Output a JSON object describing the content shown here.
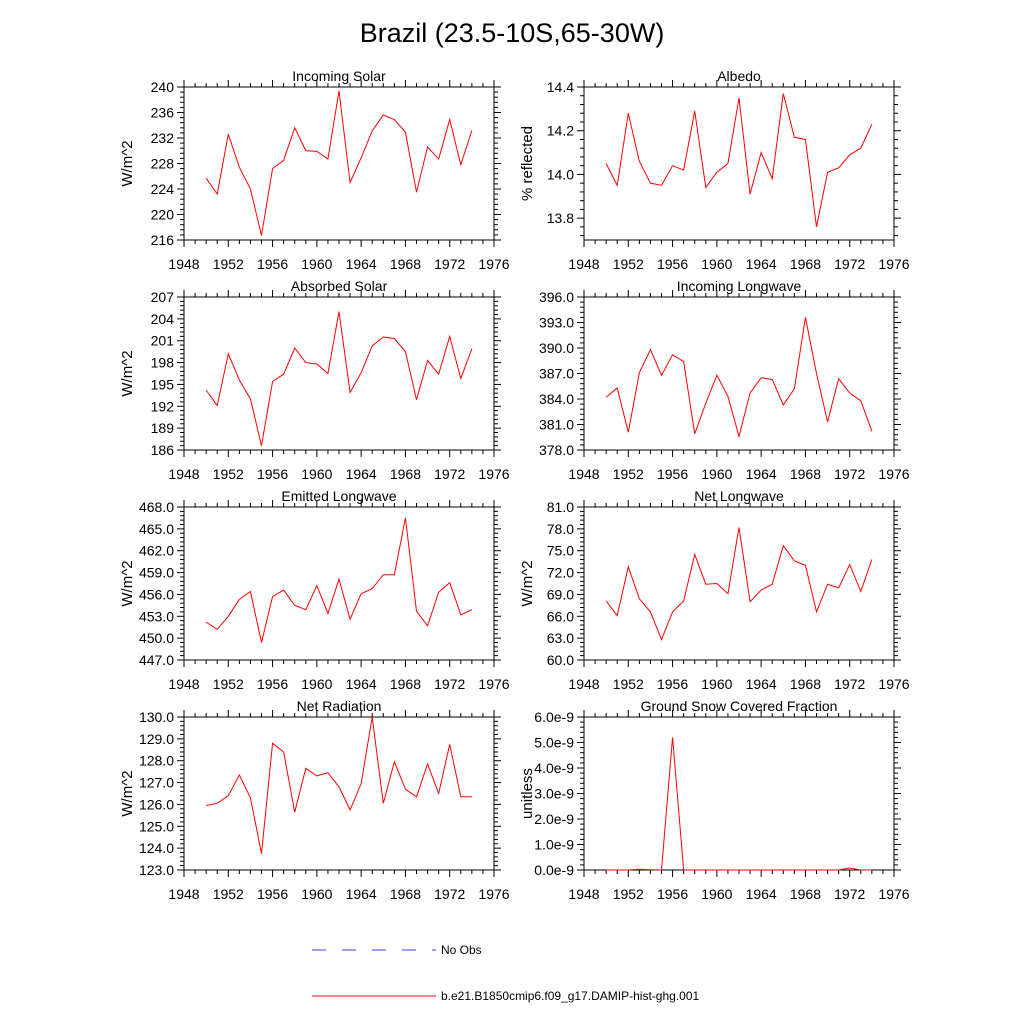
{
  "title": "Brazil (23.5-10S,65-30W)",
  "legend": {
    "items": [
      {
        "label": "No Obs",
        "color": "#3b3bff",
        "dash": "dashed"
      },
      {
        "label": "b.e21.B1850cmip6.f09_g17.DAMIP-hist-ghg.001",
        "color": "#ff0000",
        "dash": "solid"
      }
    ]
  },
  "chart_data": [
    {
      "type": "line",
      "title": "Incoming Solar",
      "ylabel": "W/m^2",
      "xlim": [
        1948,
        1976
      ],
      "ylim": [
        216,
        240
      ],
      "xticks": [
        1948,
        1952,
        1956,
        1960,
        1964,
        1968,
        1972,
        1976
      ],
      "yticks": [
        "216",
        "220",
        "224",
        "228",
        "232",
        "236",
        "240"
      ],
      "ytick_values": [
        216,
        220,
        224,
        228,
        232,
        236,
        240
      ],
      "x": [
        1950,
        1951,
        1952,
        1953,
        1954,
        1955,
        1956,
        1957,
        1958,
        1959,
        1960,
        1961,
        1962,
        1963,
        1964,
        1965,
        1966,
        1967,
        1968,
        1969,
        1970,
        1971,
        1972,
        1973,
        1974
      ],
      "series": [
        {
          "values": [
            225.7,
            223.2,
            232.6,
            227.4,
            224.0,
            216.7,
            227.2,
            228.5,
            233.6,
            230.0,
            229.9,
            228.7,
            239.4,
            225.0,
            228.9,
            233.1,
            235.6,
            234.9,
            232.9,
            223.5,
            230.6,
            228.7,
            234.9,
            227.8,
            233.2
          ]
        }
      ]
    },
    {
      "type": "line",
      "title": "Albedo",
      "ylabel": "% reflected",
      "xlim": [
        1948,
        1976
      ],
      "ylim": [
        13.7,
        14.4
      ],
      "xticks": [
        1948,
        1952,
        1956,
        1960,
        1964,
        1968,
        1972,
        1976
      ],
      "yticks": [
        "13.8",
        "14.0",
        "14.2",
        "14.4"
      ],
      "ytick_values": [
        13.8,
        14.0,
        14.2,
        14.4
      ],
      "x": [
        1950,
        1951,
        1952,
        1953,
        1954,
        1955,
        1956,
        1957,
        1958,
        1959,
        1960,
        1961,
        1962,
        1963,
        1964,
        1965,
        1966,
        1967,
        1968,
        1969,
        1970,
        1971,
        1972,
        1973,
        1974
      ],
      "series": [
        {
          "values": [
            14.05,
            13.95,
            14.28,
            14.06,
            13.96,
            13.95,
            14.04,
            14.02,
            14.29,
            13.94,
            14.01,
            14.05,
            14.35,
            13.91,
            14.1,
            13.98,
            14.37,
            14.17,
            14.16,
            13.76,
            14.01,
            14.03,
            14.09,
            14.12,
            14.23
          ]
        }
      ]
    },
    {
      "type": "line",
      "title": "Absorbed Solar",
      "ylabel": "W/m^2",
      "xlim": [
        1948,
        1976
      ],
      "ylim": [
        186,
        207
      ],
      "xticks": [
        1948,
        1952,
        1956,
        1960,
        1964,
        1968,
        1972,
        1976
      ],
      "yticks": [
        "186",
        "189",
        "192",
        "195",
        "198",
        "201",
        "204",
        "207"
      ],
      "ytick_values": [
        186,
        189,
        192,
        195,
        198,
        201,
        204,
        207
      ],
      "x": [
        1950,
        1951,
        1952,
        1953,
        1954,
        1955,
        1956,
        1957,
        1958,
        1959,
        1960,
        1961,
        1962,
        1963,
        1964,
        1965,
        1966,
        1967,
        1968,
        1969,
        1970,
        1971,
        1972,
        1973,
        1974
      ],
      "series": [
        {
          "values": [
            194.2,
            192.1,
            199.2,
            195.6,
            193.0,
            186.6,
            195.4,
            196.4,
            200.0,
            198.0,
            197.8,
            196.5,
            205.0,
            193.9,
            196.6,
            200.3,
            201.5,
            201.3,
            199.5,
            192.9,
            198.3,
            196.4,
            201.6,
            195.8,
            199.9
          ]
        }
      ]
    },
    {
      "type": "line",
      "title": "Incoming Longwave",
      "ylabel": "",
      "xlim": [
        1948,
        1976
      ],
      "ylim": [
        378,
        396
      ],
      "xticks": [
        1948,
        1952,
        1956,
        1960,
        1964,
        1968,
        1972,
        1976
      ],
      "yticks": [
        "378.0",
        "381.0",
        "384.0",
        "387.0",
        "390.0",
        "393.0",
        "396.0"
      ],
      "ytick_values": [
        378,
        381,
        384,
        387,
        390,
        393,
        396
      ],
      "x": [
        1950,
        1951,
        1952,
        1953,
        1954,
        1955,
        1956,
        1957,
        1958,
        1959,
        1960,
        1961,
        1962,
        1963,
        1964,
        1965,
        1966,
        1967,
        1968,
        1969,
        1970,
        1971,
        1972,
        1973,
        1974
      ],
      "series": [
        {
          "values": [
            384.2,
            385.3,
            380.1,
            387.1,
            389.8,
            386.8,
            389.2,
            388.4,
            379.9,
            383.5,
            386.8,
            384.3,
            379.6,
            384.7,
            386.5,
            386.3,
            383.3,
            385.2,
            393.6,
            387.0,
            381.3,
            386.4,
            384.7,
            383.8,
            380.2
          ]
        }
      ]
    },
    {
      "type": "line",
      "title": "Emitted Longwave",
      "ylabel": "W/m^2",
      "xlim": [
        1948,
        1976
      ],
      "ylim": [
        447,
        468
      ],
      "xticks": [
        1948,
        1952,
        1956,
        1960,
        1964,
        1968,
        1972,
        1976
      ],
      "yticks": [
        "447.0",
        "450.0",
        "453.0",
        "456.0",
        "459.0",
        "462.0",
        "465.0",
        "468.0"
      ],
      "ytick_values": [
        447,
        450,
        453,
        456,
        459,
        462,
        465,
        468
      ],
      "x": [
        1950,
        1951,
        1952,
        1953,
        1954,
        1955,
        1956,
        1957,
        1958,
        1959,
        1960,
        1961,
        1962,
        1963,
        1964,
        1965,
        1966,
        1967,
        1968,
        1969,
        1970,
        1971,
        1972,
        1973,
        1974
      ],
      "series": [
        {
          "values": [
            452.2,
            451.2,
            453.0,
            455.3,
            456.4,
            449.4,
            455.7,
            456.6,
            454.5,
            453.9,
            457.2,
            453.4,
            458.1,
            452.6,
            456.1,
            456.8,
            458.7,
            458.7,
            466.5,
            453.7,
            451.7,
            456.3,
            457.6,
            453.2,
            453.9
          ]
        }
      ]
    },
    {
      "type": "line",
      "title": "Net Longwave",
      "ylabel": "W/m^2",
      "xlim": [
        1948,
        1976
      ],
      "ylim": [
        60,
        81
      ],
      "xticks": [
        1948,
        1952,
        1956,
        1960,
        1964,
        1968,
        1972,
        1976
      ],
      "yticks": [
        "60.0",
        "63.0",
        "66.0",
        "69.0",
        "72.0",
        "75.0",
        "78.0",
        "81.0"
      ],
      "ytick_values": [
        60,
        63,
        66,
        69,
        72,
        75,
        78,
        81
      ],
      "x": [
        1950,
        1951,
        1952,
        1953,
        1954,
        1955,
        1956,
        1957,
        1958,
        1959,
        1960,
        1961,
        1962,
        1963,
        1964,
        1965,
        1966,
        1967,
        1968,
        1969,
        1970,
        1971,
        1972,
        1973,
        1974
      ],
      "series": [
        {
          "values": [
            68.1,
            66.1,
            72.8,
            68.4,
            66.6,
            62.8,
            66.6,
            68.1,
            74.5,
            70.4,
            70.5,
            69.1,
            78.2,
            68.0,
            69.6,
            70.4,
            75.7,
            73.6,
            73.0,
            66.6,
            70.4,
            69.9,
            73.1,
            69.4,
            73.8
          ]
        }
      ]
    },
    {
      "type": "line",
      "title": "Net Radiation",
      "ylabel": "W/m^2",
      "xlim": [
        1948,
        1976
      ],
      "ylim": [
        123,
        130
      ],
      "xticks": [
        1948,
        1952,
        1956,
        1960,
        1964,
        1968,
        1972,
        1976
      ],
      "yticks": [
        "123.0",
        "124.0",
        "125.0",
        "126.0",
        "127.0",
        "128.0",
        "129.0",
        "130.0"
      ],
      "ytick_values": [
        123,
        124,
        125,
        126,
        127,
        128,
        129,
        130
      ],
      "x": [
        1950,
        1951,
        1952,
        1953,
        1954,
        1955,
        1956,
        1957,
        1958,
        1959,
        1960,
        1961,
        1962,
        1963,
        1964,
        1965,
        1966,
        1967,
        1968,
        1969,
        1970,
        1971,
        1972,
        1973,
        1974
      ],
      "series": [
        {
          "values": [
            125.95,
            126.05,
            126.4,
            127.35,
            126.3,
            123.75,
            128.8,
            128.4,
            125.65,
            127.65,
            127.3,
            127.45,
            126.8,
            125.75,
            126.95,
            130.0,
            126.05,
            127.95,
            126.7,
            126.35,
            127.85,
            126.5,
            128.75,
            126.35,
            126.35
          ]
        }
      ]
    },
    {
      "type": "line",
      "title": "Ground Snow Covered Fraction",
      "ylabel": "unitless",
      "xlim": [
        1948,
        1976
      ],
      "ylim": [
        0,
        6e-09
      ],
      "xticks": [
        1948,
        1952,
        1956,
        1960,
        1964,
        1968,
        1972,
        1976
      ],
      "yticks": [
        "0.0e-9",
        "1.0e-9",
        "2.0e-9",
        "3.0e-9",
        "4.0e-9",
        "5.0e-9",
        "6.0e-9"
      ],
      "ytick_values": [
        0,
        1e-09,
        2e-09,
        3e-09,
        4e-09,
        5e-09,
        6e-09
      ],
      "x": [
        1950,
        1951,
        1952,
        1953,
        1954,
        1955,
        1956,
        1957,
        1958,
        1959,
        1960,
        1961,
        1962,
        1963,
        1964,
        1965,
        1966,
        1967,
        1968,
        1969,
        1970,
        1971,
        1972,
        1973,
        1974
      ],
      "series": [
        {
          "values": [
            0,
            0,
            0,
            3e-11,
            1e-11,
            0,
            5.2e-09,
            0,
            0,
            0,
            0,
            0,
            0,
            0,
            0,
            0,
            0,
            0,
            0,
            0,
            0,
            0,
            8e-11,
            0,
            0
          ]
        }
      ]
    }
  ]
}
